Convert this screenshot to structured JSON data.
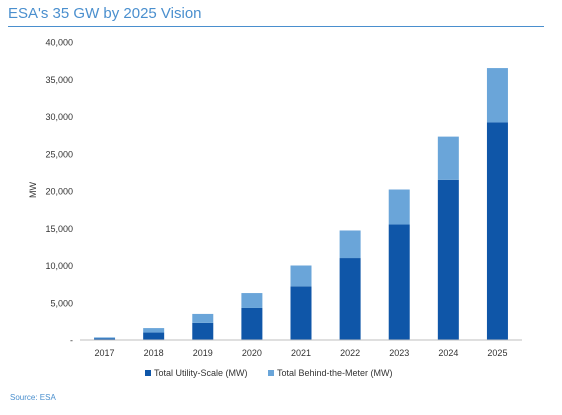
{
  "header": {
    "title": "ESA's 35 GW by 2025 Vision"
  },
  "footer": {
    "source": "Source: ESA"
  },
  "chart_data": {
    "type": "bar",
    "stacked": true,
    "title": "ESA's 35 GW by 2025 Vision",
    "xlabel": "",
    "ylabel": "MW",
    "ylim": [
      0,
      40000
    ],
    "yticks": [
      0,
      5000,
      10000,
      15000,
      20000,
      25000,
      30000,
      35000,
      40000
    ],
    "ytick_labels": [
      "-",
      "5,000",
      "10,000",
      "15,000",
      "20,000",
      "25,000",
      "30,000",
      "35,000",
      "40,000"
    ],
    "categories": [
      "2017",
      "2018",
      "2019",
      "2020",
      "2021",
      "2022",
      "2023",
      "2024",
      "2025"
    ],
    "series": [
      {
        "name": "Total Utility-Scale (MW)",
        "color": "#0f56a8",
        "values": [
          200,
          1000,
          2300,
          4300,
          7200,
          11000,
          15500,
          21500,
          29200
        ]
      },
      {
        "name": "Total Behind-the-Meter (MW)",
        "color": "#6aa5d9",
        "values": [
          150,
          600,
          1200,
          2000,
          2800,
          3700,
          4700,
          5800,
          7300
        ]
      }
    ],
    "grid": false,
    "legend_position": "bottom"
  }
}
